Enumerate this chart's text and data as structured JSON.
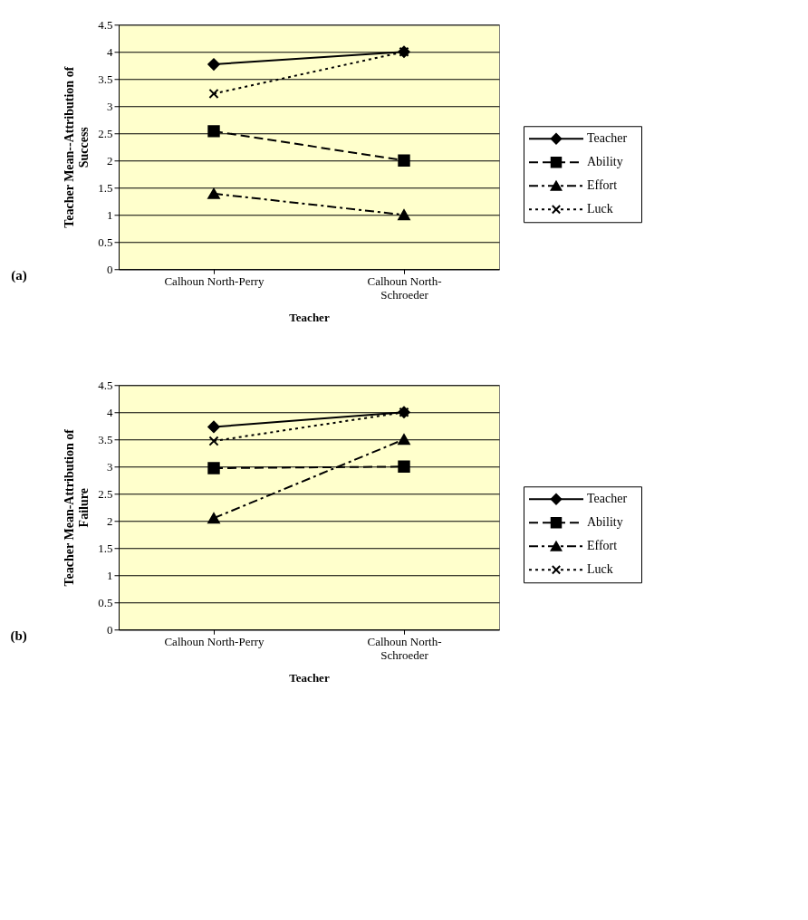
{
  "chart_data": [
    {
      "type": "line",
      "title": "(a)",
      "xlabel": "Teacher",
      "ylabel": "Teacher Mean--Attribution of Success",
      "categories": [
        "Calhoun North-Perry",
        "Calhoun North-Schroeder"
      ],
      "ylim": [
        0,
        4.5
      ],
      "yticks": [
        0,
        0.5,
        1,
        1.5,
        2,
        2.5,
        3,
        3.5,
        4,
        4.5
      ],
      "grid": "y",
      "legend": "right",
      "series": [
        {
          "name": "Teacher",
          "color": "#000000",
          "marker": "diamond",
          "line_style": "solid",
          "values": [
            3.77,
            4.0
          ]
        },
        {
          "name": "Ability",
          "color": "#000000",
          "marker": "square",
          "line_style": "dashed",
          "values": [
            2.54,
            2.0
          ]
        },
        {
          "name": "Effort",
          "color": "#000000",
          "marker": "triangle",
          "line_style": "dashdot",
          "values": [
            1.39,
            1.0
          ]
        },
        {
          "name": "Luck",
          "color": "#000000",
          "marker": "cross",
          "line_style": "dotted",
          "values": [
            3.23,
            4.0
          ]
        }
      ]
    },
    {
      "type": "line",
      "title": "(b)",
      "xlabel": "Teacher",
      "ylabel": "Teacher Mean-Attribution of Failure",
      "categories": [
        "Calhoun North-Perry",
        "Calhoun North-Schroeder"
      ],
      "ylim": [
        0,
        4.5
      ],
      "yticks": [
        0,
        0.5,
        1,
        1.5,
        2,
        2.5,
        3,
        3.5,
        4,
        4.5
      ],
      "grid": "y",
      "legend": "right",
      "series": [
        {
          "name": "Teacher",
          "color": "#000000",
          "marker": "diamond",
          "line_style": "solid",
          "values": [
            3.73,
            4.0
          ]
        },
        {
          "name": "Ability",
          "color": "#000000",
          "marker": "square",
          "line_style": "dashed",
          "values": [
            2.97,
            3.0
          ]
        },
        {
          "name": "Effort",
          "color": "#000000",
          "marker": "triangle",
          "line_style": "dashdot",
          "values": [
            2.05,
            3.5
          ]
        },
        {
          "name": "Luck",
          "color": "#000000",
          "marker": "cross",
          "line_style": "dotted",
          "values": [
            3.47,
            4.0
          ]
        }
      ]
    }
  ]
}
